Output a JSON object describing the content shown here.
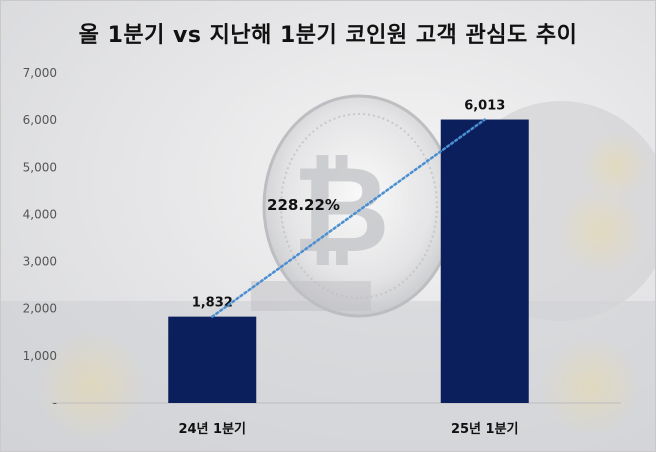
{
  "chart_data": {
    "type": "bar",
    "title": "올 1분기 vs 지난해 1분기 코인원 고객 관심도 추이",
    "categories": [
      "24년 1분기",
      "25년 1분기"
    ],
    "values": [
      1832,
      6013
    ],
    "value_labels": [
      "1,832",
      "6,013"
    ],
    "ylim": [
      0,
      7000
    ],
    "yticks": [
      0,
      1000,
      2000,
      3000,
      4000,
      5000,
      6000,
      7000
    ],
    "ytick_labels": [
      "-",
      "1,000",
      "2,000",
      "3,000",
      "4,000",
      "5,000",
      "6,000",
      "7,000"
    ],
    "trendline": "dotted",
    "growth_annotation": "228.22%",
    "grid": false,
    "bar_color": "#0b1f5c",
    "trend_color": "#4a8fd1",
    "background": "bitcoin-coin-photo"
  }
}
